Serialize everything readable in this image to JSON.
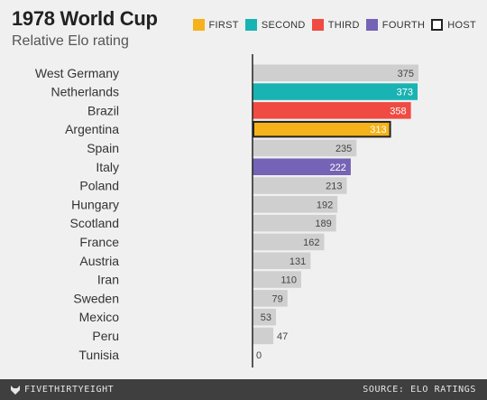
{
  "header": {
    "title": "1978 World Cup",
    "subtitle": "Relative Elo rating"
  },
  "legend": [
    {
      "label": "FIRST",
      "color": "#f5b21a",
      "outline": false
    },
    {
      "label": "SECOND",
      "color": "#1ab3b3",
      "outline": false
    },
    {
      "label": "THIRD",
      "color": "#ef4b43",
      "outline": false
    },
    {
      "label": "FOURTH",
      "color": "#7563b5",
      "outline": false
    },
    {
      "label": "HOST",
      "color": "#ffffff",
      "outline": true
    }
  ],
  "chart_data": {
    "type": "bar",
    "orientation": "horizontal",
    "title": "1978 World Cup",
    "subtitle": "Relative Elo rating",
    "categories": [
      "West Germany",
      "Netherlands",
      "Brazil",
      "Argentina",
      "Spain",
      "Italy",
      "Poland",
      "Hungary",
      "Scotland",
      "France",
      "Austria",
      "Iran",
      "Sweden",
      "Mexico",
      "Peru",
      "Tunisia"
    ],
    "values": [
      375,
      373,
      358,
      313,
      235,
      222,
      213,
      192,
      189,
      162,
      131,
      110,
      79,
      53,
      47,
      0
    ],
    "highlights": {
      "Netherlands": "SECOND",
      "Brazil": "THIRD",
      "Argentina": "FIRST",
      "Italy": "FOURTH"
    },
    "host": "Argentina",
    "default_color": "#cfcfcf",
    "xlim": [
      0,
      375
    ],
    "grid": false
  },
  "footer": {
    "brand": "FIVETHIRTYEIGHT",
    "source": "SOURCE: ELO RATINGS"
  }
}
